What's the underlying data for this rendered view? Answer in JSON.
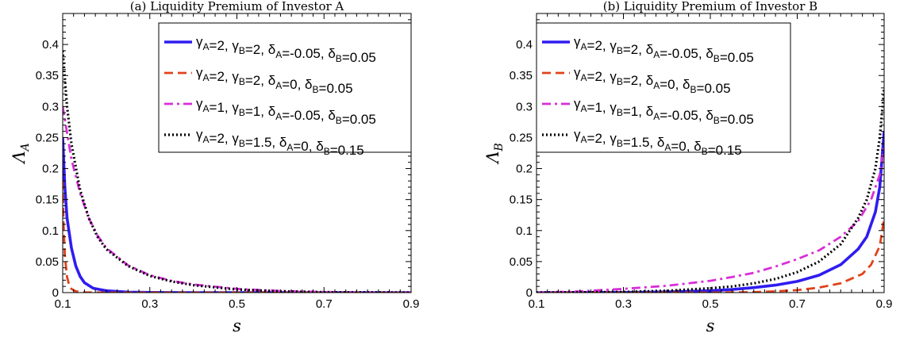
{
  "chart_data": [
    {
      "type": "line",
      "title": "(a) Liquidity Premium of Investor A",
      "xlabel": "s",
      "ylabel": "Λ",
      "ylabel_sub": "A",
      "xlim": [
        0.1,
        0.9
      ],
      "ylim": [
        0,
        0.45
      ],
      "xticks": [
        0.1,
        0.3,
        0.5,
        0.7,
        0.9
      ],
      "xtick_labels": [
        "0.1",
        "0.3",
        "0.5",
        "0.7",
        "0.9"
      ],
      "yticks": [
        0,
        0.05,
        0.1,
        0.15,
        0.2,
        0.25,
        0.3,
        0.35,
        0.4
      ],
      "ytick_labels": [
        "0",
        "0.05",
        "0.1",
        "0.15",
        "0.2",
        "0.25",
        "0.3",
        "0.35",
        "0.4"
      ],
      "grid": false,
      "legend_position": "top-right",
      "series": [
        {
          "name": "γA=2, γB=2, δA=-0.05, δB=0.05",
          "color": "#2f1cf0",
          "style": "solid",
          "x": [
            0.1,
            0.105,
            0.11,
            0.12,
            0.13,
            0.14,
            0.15,
            0.17,
            0.2,
            0.25,
            0.3,
            0.4,
            0.5,
            0.6,
            0.7,
            0.8,
            0.9
          ],
          "y": [
            0.25,
            0.17,
            0.12,
            0.072,
            0.043,
            0.026,
            0.016,
            0.007,
            0.003,
            0.0008,
            0.0003,
            5e-05,
            0,
            0,
            0,
            0,
            0
          ]
        },
        {
          "name": "γA=2, γB=2, δA=0, δB=0.05",
          "color": "#e0421b",
          "style": "dashed",
          "x": [
            0.1,
            0.102,
            0.105,
            0.11,
            0.115,
            0.12,
            0.13,
            0.15,
            0.2,
            0.3,
            0.5,
            0.9
          ],
          "y": [
            0.18,
            0.11,
            0.06,
            0.025,
            0.012,
            0.006,
            0.002,
            0.0004,
            0,
            0,
            0,
            0
          ]
        },
        {
          "name": "γA=1, γB=1, δA=-0.05, δB=0.05",
          "color": "#d82ed8",
          "style": "dashdot",
          "x": [
            0.1,
            0.12,
            0.14,
            0.16,
            0.18,
            0.2,
            0.25,
            0.3,
            0.35,
            0.4,
            0.5,
            0.6,
            0.7,
            0.8,
            0.9
          ],
          "y": [
            0.3,
            0.215,
            0.16,
            0.12,
            0.092,
            0.072,
            0.044,
            0.028,
            0.019,
            0.013,
            0.006,
            0.0025,
            0.001,
            0.0003,
            0
          ]
        },
        {
          "name": "γA=2, γB=1.5, δA=0, δB=0.15",
          "color": "#000000",
          "style": "dotted",
          "x": [
            0.1,
            0.11,
            0.12,
            0.14,
            0.16,
            0.18,
            0.2,
            0.25,
            0.3,
            0.35,
            0.4,
            0.5,
            0.6,
            0.7,
            0.8,
            0.9
          ],
          "y": [
            0.39,
            0.3,
            0.24,
            0.165,
            0.12,
            0.09,
            0.07,
            0.043,
            0.027,
            0.018,
            0.012,
            0.005,
            0.002,
            0.0007,
            0.0002,
            0
          ]
        }
      ]
    },
    {
      "type": "line",
      "title": "(b) Liquidity Premium of Investor B",
      "xlabel": "s",
      "ylabel": "Λ",
      "ylabel_sub": "B",
      "xlim": [
        0.1,
        0.9
      ],
      "ylim": [
        0,
        0.45
      ],
      "xticks": [
        0.1,
        0.3,
        0.5,
        0.7,
        0.9
      ],
      "xtick_labels": [
        "0.1",
        "0.3",
        "0.5",
        "0.7",
        "0.9"
      ],
      "yticks": [
        0,
        0.05,
        0.1,
        0.15,
        0.2,
        0.25,
        0.3,
        0.35,
        0.4
      ],
      "ytick_labels": [
        "0",
        "0.05",
        "0.1",
        "0.15",
        "0.2",
        "0.25",
        "0.3",
        "0.35",
        "0.4"
      ],
      "grid": false,
      "legend_position": "top-left",
      "series": [
        {
          "name": "γA=2, γB=2, δA=-0.05, δB=0.05",
          "color": "#2f1cf0",
          "style": "solid",
          "x": [
            0.1,
            0.3,
            0.4,
            0.5,
            0.55,
            0.6,
            0.65,
            0.7,
            0.75,
            0.8,
            0.84,
            0.86,
            0.88,
            0.89,
            0.9
          ],
          "y": [
            0,
            0.0003,
            0.001,
            0.003,
            0.005,
            0.008,
            0.012,
            0.018,
            0.028,
            0.045,
            0.07,
            0.09,
            0.13,
            0.17,
            0.26
          ]
        },
        {
          "name": "γA=2, γB=2, δA=0, δB=0.05",
          "color": "#e0421b",
          "style": "dashed",
          "x": [
            0.1,
            0.5,
            0.6,
            0.65,
            0.7,
            0.75,
            0.8,
            0.85,
            0.87,
            0.89,
            0.9
          ],
          "y": [
            0,
            0,
            0.0008,
            0.002,
            0.004,
            0.008,
            0.015,
            0.03,
            0.045,
            0.075,
            0.12
          ]
        },
        {
          "name": "γA=1, γB=1, δA=-0.05, δB=0.05",
          "color": "#d82ed8",
          "style": "dashdot",
          "x": [
            0.1,
            0.2,
            0.3,
            0.4,
            0.5,
            0.55,
            0.6,
            0.65,
            0.7,
            0.75,
            0.8,
            0.84,
            0.87,
            0.89,
            0.9
          ],
          "y": [
            0,
            0.002,
            0.006,
            0.011,
            0.019,
            0.025,
            0.032,
            0.042,
            0.054,
            0.068,
            0.09,
            0.115,
            0.15,
            0.19,
            0.24
          ]
        },
        {
          "name": "γA=2, γB=1.5, δA=0, δB=0.15",
          "color": "#000000",
          "style": "dotted",
          "x": [
            0.1,
            0.3,
            0.4,
            0.5,
            0.55,
            0.6,
            0.65,
            0.7,
            0.75,
            0.8,
            0.84,
            0.86,
            0.88,
            0.89,
            0.9
          ],
          "y": [
            0,
            0.001,
            0.003,
            0.007,
            0.01,
            0.015,
            0.022,
            0.033,
            0.05,
            0.078,
            0.12,
            0.15,
            0.2,
            0.25,
            0.33
          ]
        }
      ]
    }
  ]
}
